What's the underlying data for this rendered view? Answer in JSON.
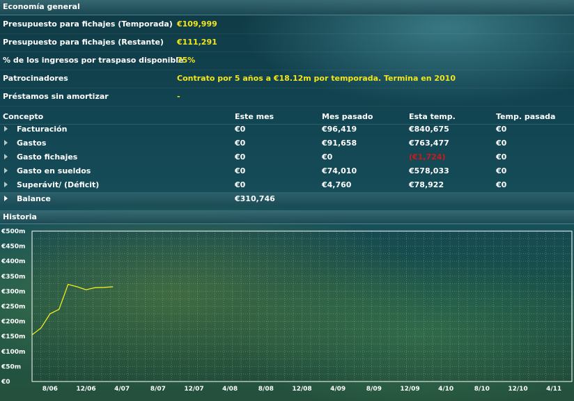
{
  "header": {
    "title": "Economía general"
  },
  "info_rows": [
    {
      "label": "Presupuesto para fichajes (Temporada)",
      "value": "€109,999"
    },
    {
      "label": "Presupuesto para fichajes (Restante)",
      "value": "€111,291"
    },
    {
      "label": "% de los ingresos por traspaso disponible",
      "value": "75%"
    },
    {
      "label": "Patrocinadores",
      "value": "Contrato por 5 años a €18.12m por temporada. Termina en 2010"
    },
    {
      "label": "Préstamos sin amortizar",
      "value": "-"
    }
  ],
  "table": {
    "headers": [
      "Concepto",
      "Este mes",
      "Mes pasado",
      "Esta temp.",
      "Temp. pasada"
    ],
    "rows": [
      {
        "label": "Facturación",
        "cells": [
          "€0",
          "€96,419",
          "€840,675",
          "€0"
        ]
      },
      {
        "label": "Gastos",
        "cells": [
          "€0",
          "€91,658",
          "€763,477",
          "€0"
        ]
      },
      {
        "label": "Gasto fichajes",
        "cells": [
          "€0",
          "€0",
          "(€1,724)",
          "€0"
        ]
      },
      {
        "label": "Gasto en sueldos",
        "cells": [
          "€0",
          "€74,010",
          "€578,033",
          "€0"
        ]
      },
      {
        "label": "Superávit/ (Déficit)",
        "cells": [
          "€0",
          "€4,760",
          "€78,922",
          "€0"
        ]
      }
    ],
    "balance": {
      "label": "Balance",
      "value": "€310,746"
    }
  },
  "history": {
    "title": "Historia",
    "chart_data": {
      "type": "line",
      "y_ticks": [
        "€0",
        "€50m",
        "€100m",
        "€150m",
        "€200m",
        "€250m",
        "€300m",
        "€350m",
        "€400m",
        "€450m",
        "€500m"
      ],
      "x_ticks": [
        "8/06",
        "12/06",
        "4/07",
        "8/07",
        "12/07",
        "4/08",
        "8/08",
        "12/08",
        "4/09",
        "8/09",
        "12/09",
        "4/10",
        "8/10",
        "12/10",
        "4/11"
      ],
      "ylim": [
        0,
        500
      ],
      "series": [
        {
          "color": "#f2ee1c",
          "x": [
            0,
            1,
            2,
            3,
            4,
            5,
            6,
            7,
            8,
            9
          ],
          "y": [
            155,
            178,
            225,
            240,
            323,
            315,
            305,
            312,
            313,
            315
          ]
        }
      ]
    }
  },
  "colors": {
    "accent_value": "#f2e61c",
    "negative": "#d01818"
  }
}
